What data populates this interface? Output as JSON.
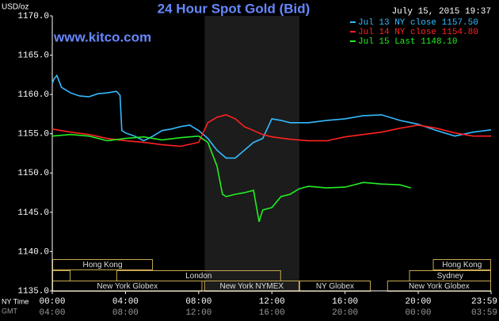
{
  "chart_data": {
    "type": "line",
    "title": "24 Hour Spot Gold (Bid)",
    "timestamp": "July 15, 2015 19:37",
    "site": "www.kitco.com",
    "y_label": "USD/oz",
    "x_label": "NY Time",
    "x2_label": "GMT",
    "ylim": [
      1135,
      1170
    ],
    "yticks": [
      {
        "value": 1135,
        "label": "1135.0"
      },
      {
        "value": 1140,
        "label": "1140.0"
      },
      {
        "value": 1145,
        "label": "1145.0"
      },
      {
        "value": 1150,
        "label": "1150.0"
      },
      {
        "value": 1155,
        "label": "1155.0"
      },
      {
        "value": 1160,
        "label": "1160.0"
      },
      {
        "value": 1165,
        "label": "1165.0"
      },
      {
        "value": 1170,
        "label": "1170.0"
      }
    ],
    "xlim": [
      0,
      23.98
    ],
    "xticks": [
      {
        "value": 0,
        "label": "00:00"
      },
      {
        "value": 4,
        "label": "04:00"
      },
      {
        "value": 8,
        "label": "08:00"
      },
      {
        "value": 12,
        "label": "12:00"
      },
      {
        "value": 16,
        "label": "16:00"
      },
      {
        "value": 20,
        "label": "20:00"
      },
      {
        "value": 23.98,
        "label": "23:59"
      }
    ],
    "x2tick_labels": [
      "04:00",
      "08:00",
      "12:00",
      "16:00",
      "20:00",
      "00:00",
      "03:59"
    ],
    "shaded_range": [
      8.33,
      13.5
    ],
    "session_rows": [
      [
        {
          "label": "Hong Kong",
          "start": 0,
          "end": 5.5
        },
        {
          "label": "Hong Kong",
          "start": 20.8,
          "end": 23.98
        }
      ],
      [
        {
          "label": null,
          "start": 0,
          "end": 1
        },
        {
          "label": "London",
          "start": 3.5,
          "end": 12.5
        },
        {
          "label": "Sydney",
          "start": 19.5,
          "end": 23.98
        }
      ],
      [
        {
          "label": "New York Globex",
          "start": 0,
          "end": 8.2
        },
        {
          "label": "New York NYMEX",
          "start": 8.3,
          "end": 13.5
        },
        {
          "label": "NY Globex",
          "start": 13.5,
          "end": 17.4
        },
        {
          "label": "New York Globex",
          "start": 18.3,
          "end": 23.98
        }
      ]
    ],
    "series": [
      {
        "name": "Jul 13 NY close 1157.50",
        "color": "#33bbff",
        "x": [
          0,
          0.1,
          0.25,
          0.5,
          1,
          1.5,
          2,
          2.5,
          3,
          3.5,
          3.7,
          3.8,
          4,
          4.5,
          5,
          5.5,
          6,
          6.5,
          7,
          7.5,
          8,
          8.5,
          9,
          9.5,
          10,
          10.5,
          11,
          11.5,
          12,
          12.5,
          13,
          14,
          15,
          16,
          17,
          18,
          19,
          20,
          21,
          22,
          23,
          23.98
        ],
        "values": [
          1161.4,
          1162,
          1162.4,
          1160.9,
          1160.2,
          1159.8,
          1159.7,
          1160.1,
          1160.2,
          1160.4,
          1159.9,
          1155.4,
          1155.1,
          1154.7,
          1154.1,
          1154.7,
          1155.4,
          1155.6,
          1155.9,
          1156.1,
          1155.4,
          1154.4,
          1152.9,
          1151.9,
          1151.9,
          1152.9,
          1153.9,
          1154.4,
          1156.9,
          1156.7,
          1156.4,
          1156.4,
          1156.7,
          1156.9,
          1157.3,
          1157.4,
          1156.7,
          1156.2,
          1155.4,
          1154.7,
          1155.2,
          1155.5
        ]
      },
      {
        "name": "Jul 14 NY close 1154.80",
        "color": "#ff2222",
        "x": [
          0,
          1,
          2,
          3,
          4,
          5,
          6,
          7,
          8,
          8.5,
          9,
          9.5,
          10,
          10.5,
          11,
          11.5,
          12,
          13,
          14,
          15,
          16,
          17,
          18,
          19,
          20,
          21,
          22,
          23,
          23.98
        ],
        "values": [
          1155.6,
          1155.2,
          1154.9,
          1154.4,
          1154.1,
          1153.9,
          1153.6,
          1153.4,
          1153.9,
          1156.4,
          1157.1,
          1157.4,
          1156.9,
          1155.9,
          1155.4,
          1154.9,
          1154.6,
          1154.3,
          1154.1,
          1154.1,
          1154.6,
          1154.9,
          1155.2,
          1155.7,
          1156.1,
          1155.7,
          1155.1,
          1154.7,
          1154.7
        ]
      },
      {
        "name": "Jul 15 Last 1148.10",
        "color": "#22ee22",
        "x": [
          0,
          1,
          2,
          3,
          4,
          5,
          6,
          7,
          8,
          8.5,
          9,
          9.3,
          9.5,
          10,
          10.5,
          11,
          11.3,
          11.5,
          12,
          12.5,
          13,
          13.5,
          14,
          15,
          16,
          17,
          18,
          19,
          19.6
        ],
        "values": [
          1154.7,
          1154.9,
          1154.7,
          1154.1,
          1154.4,
          1154.6,
          1154.2,
          1154.5,
          1154.7,
          1153.9,
          1150.9,
          1147.3,
          1147.0,
          1147.3,
          1147.5,
          1147.8,
          1143.8,
          1145.3,
          1145.6,
          1147.0,
          1147.3,
          1148.0,
          1148.3,
          1148.1,
          1148.2,
          1148.8,
          1148.6,
          1148.5,
          1148.1
        ]
      }
    ]
  }
}
